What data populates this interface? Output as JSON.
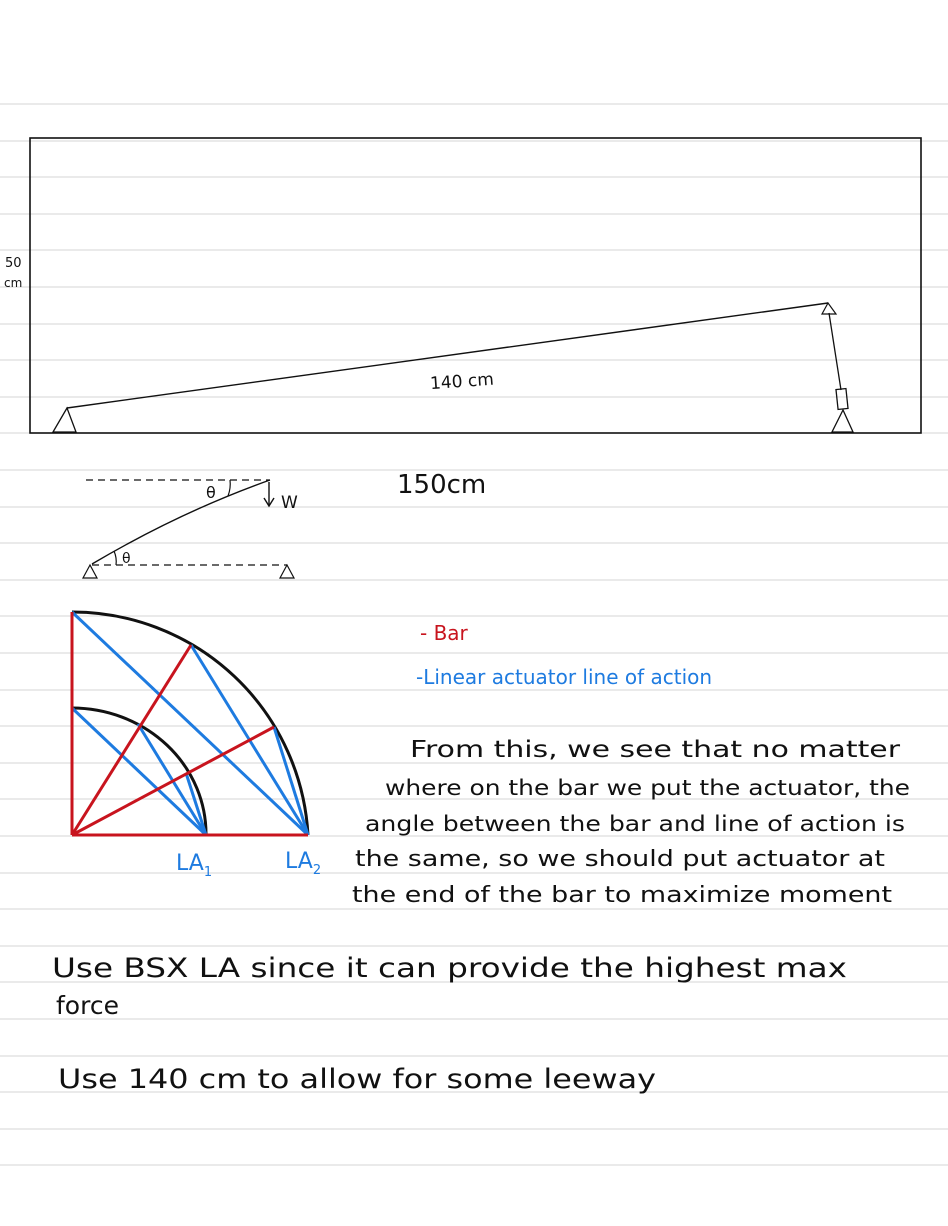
{
  "top_diagram": {
    "height_label_line1": "50",
    "height_label_line2": "cm",
    "bar_length_label": "140 cm",
    "width_label": "150cm"
  },
  "force_sketch": {
    "angle_symbol_top": "θ",
    "angle_symbol_bottom": "θ",
    "weight_label": "W"
  },
  "quarter_circle": {
    "la1_label": "LA",
    "la1_sub": "1",
    "la2_label": "LA",
    "la2_sub": "2"
  },
  "legend": {
    "bar_label": "- Bar",
    "actuator_label": "-Linear actuator line of action",
    "bar_color": "#c8141e",
    "actuator_color": "#1e7be0"
  },
  "notes": {
    "paragraph_lines": [
      "From this, we see that no matter",
      "where on the bar we put the actuator, the",
      "angle between the bar and line of action is",
      "the same, so we should put actuator at",
      "the end of the bar to maximize moment"
    ],
    "conclusion_1_line1": "Use BSX LA since it can provide the highest max",
    "conclusion_1_line2": "force",
    "conclusion_2": "Use 140 cm to allow for some leeway"
  }
}
